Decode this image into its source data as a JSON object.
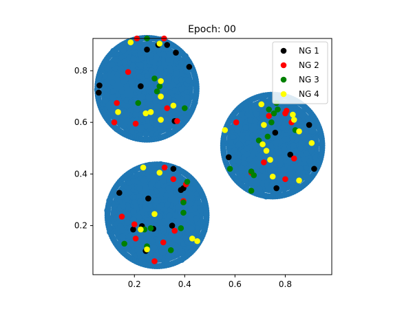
{
  "chart_data": {
    "type": "scatter",
    "title": "Epoch: 00",
    "xlabel": "",
    "ylabel": "",
    "xlim": [
      0.035,
      0.985
    ],
    "ylim": [
      0.01,
      0.925
    ],
    "xticks": [
      0.2,
      0.4,
      0.6,
      0.8
    ],
    "yticks": [
      0.2,
      0.4,
      0.6,
      0.8
    ],
    "xtick_labels": [
      "0.2",
      "0.4",
      "0.6",
      "0.8"
    ],
    "ytick_labels": [
      "0.2",
      "0.4",
      "0.6",
      "0.8"
    ],
    "grid": false,
    "legend_position": "top-right",
    "background_clusters": {
      "color": "#1f77b4",
      "clusters": [
        {
          "center": [
            0.25,
            0.73
          ],
          "radius": 0.205
        },
        {
          "center": [
            0.75,
            0.51
          ],
          "radius": 0.205
        },
        {
          "center": [
            0.29,
            0.24
          ],
          "radius": 0.205
        }
      ]
    },
    "series": [
      {
        "name": "NG 1",
        "color": "#000000",
        "points": [
          [
            0.061,
            0.743
          ],
          [
            0.058,
            0.715
          ],
          [
            0.25,
            0.882
          ],
          [
            0.295,
            0.9
          ],
          [
            0.33,
            0.9
          ],
          [
            0.365,
            0.87
          ],
          [
            0.418,
            0.815
          ],
          [
            0.225,
            0.74
          ],
          [
            0.36,
            0.605
          ],
          [
            0.895,
            0.59
          ],
          [
            0.76,
            0.56
          ],
          [
            0.575,
            0.465
          ],
          [
            0.82,
            0.475
          ],
          [
            0.915,
            0.42
          ],
          [
            0.765,
            0.345
          ],
          [
            0.355,
            0.42
          ],
          [
            0.14,
            0.327
          ],
          [
            0.255,
            0.305
          ],
          [
            0.395,
            0.345
          ],
          [
            0.385,
            0.338
          ],
          [
            0.195,
            0.185
          ],
          [
            0.23,
            0.198
          ],
          [
            0.275,
            0.188
          ],
          [
            0.35,
            0.2
          ],
          [
            0.245,
            0.102
          ]
        ]
      },
      {
        "name": "NG 2",
        "color": "#ff0000",
        "points": [
          [
            0.21,
            0.925
          ],
          [
            0.318,
            0.925
          ],
          [
            0.175,
            0.795
          ],
          [
            0.33,
            0.655
          ],
          [
            0.13,
            0.675
          ],
          [
            0.12,
            0.6
          ],
          [
            0.205,
            0.595
          ],
          [
            0.37,
            0.605
          ],
          [
            0.605,
            0.6
          ],
          [
            0.735,
            0.625
          ],
          [
            0.8,
            0.635
          ],
          [
            0.805,
            0.645
          ],
          [
            0.825,
            0.6
          ],
          [
            0.665,
            0.405
          ],
          [
            0.835,
            0.46
          ],
          [
            0.715,
            0.445
          ],
          [
            0.8,
            0.38
          ],
          [
            0.355,
            0.38
          ],
          [
            0.32,
            0.425
          ],
          [
            0.405,
            0.36
          ],
          [
            0.395,
            0.295
          ],
          [
            0.15,
            0.235
          ],
          [
            0.2,
            0.205
          ],
          [
            0.36,
            0.18
          ],
          [
            0.205,
            0.15
          ],
          [
            0.315,
            0.135
          ],
          [
            0.28,
            0.062
          ]
        ]
      },
      {
        "name": "NG 3",
        "color": "#008000",
        "points": [
          [
            0.25,
            0.925
          ],
          [
            0.28,
            0.77
          ],
          [
            0.3,
            0.74
          ],
          [
            0.29,
            0.72
          ],
          [
            0.215,
            0.675
          ],
          [
            0.4,
            0.655
          ],
          [
            0.765,
            0.675
          ],
          [
            0.735,
            0.65
          ],
          [
            0.755,
            0.635
          ],
          [
            0.77,
            0.65
          ],
          [
            0.745,
            0.6
          ],
          [
            0.695,
            0.53
          ],
          [
            0.73,
            0.545
          ],
          [
            0.84,
            0.57
          ],
          [
            0.58,
            0.42
          ],
          [
            0.675,
            0.395
          ],
          [
            0.665,
            0.41
          ],
          [
            0.665,
            0.335
          ],
          [
            0.41,
            0.37
          ],
          [
            0.395,
            0.29
          ],
          [
            0.395,
            0.25
          ],
          [
            0.265,
            0.19
          ],
          [
            0.24,
            0.185
          ],
          [
            0.385,
            0.19
          ],
          [
            0.16,
            0.13
          ],
          [
            0.25,
            0.12
          ],
          [
            0.345,
            0.105
          ]
        ]
      },
      {
        "name": "NG 4",
        "color": "#ffff00",
        "points": [
          [
            0.185,
            0.91
          ],
          [
            0.3,
            0.905
          ],
          [
            0.305,
            0.76
          ],
          [
            0.305,
            0.7
          ],
          [
            0.265,
            0.64
          ],
          [
            0.135,
            0.64
          ],
          [
            0.355,
            0.665
          ],
          [
            0.245,
            0.635
          ],
          [
            0.305,
            0.61
          ],
          [
            0.56,
            0.57
          ],
          [
            0.705,
            0.67
          ],
          [
            0.715,
            0.59
          ],
          [
            0.83,
            0.63
          ],
          [
            0.855,
            0.565
          ],
          [
            0.905,
            0.52
          ],
          [
            0.71,
            0.515
          ],
          [
            0.725,
            0.49
          ],
          [
            0.835,
            0.61
          ],
          [
            0.74,
            0.455
          ],
          [
            0.75,
            0.39
          ],
          [
            0.855,
            0.375
          ],
          [
            0.235,
            0.425
          ],
          [
            0.3,
            0.405
          ],
          [
            0.28,
            0.245
          ],
          [
            0.225,
            0.185
          ],
          [
            0.43,
            0.15
          ],
          [
            0.45,
            0.14
          ],
          [
            0.25,
            0.108
          ]
        ]
      }
    ]
  }
}
